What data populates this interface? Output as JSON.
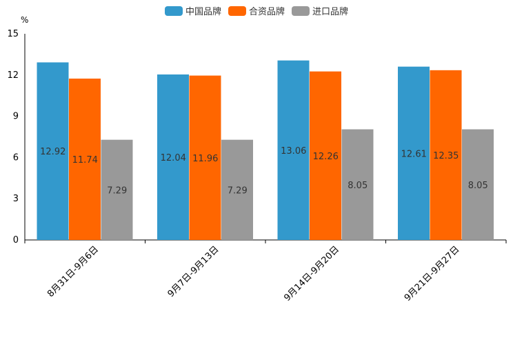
{
  "chart_data": {
    "type": "bar",
    "title": "",
    "ylabel": "%",
    "xlabel": "",
    "ylim": [
      0,
      15
    ],
    "yticks": [
      0,
      3,
      6,
      9,
      12,
      15
    ],
    "legend_position": "top-center",
    "categories": [
      "8月31日-9月6日",
      "9月7日-9月13日",
      "9月14日-9月20日",
      "9月21日-9月27日"
    ],
    "series": [
      {
        "name": "中国品牌",
        "color": "#3399cc",
        "values": [
          12.92,
          12.04,
          13.06,
          12.61
        ]
      },
      {
        "name": "合资品牌",
        "color": "#ff6600",
        "values": [
          11.74,
          11.96,
          12.26,
          12.35
        ]
      },
      {
        "name": "进口品牌",
        "color": "#999999",
        "values": [
          7.29,
          7.29,
          8.05,
          8.05
        ]
      }
    ]
  }
}
